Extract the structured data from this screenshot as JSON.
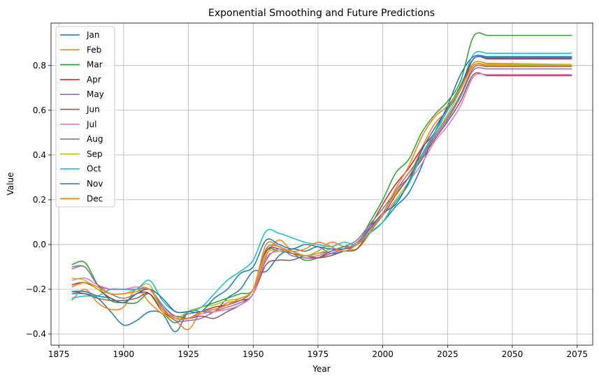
{
  "chart_data": {
    "type": "line",
    "title": "Exponential Smoothing and Future Predictions",
    "xlabel": "Year",
    "ylabel": "Value",
    "xlim": [
      1872,
      2081
    ],
    "ylim": [
      -0.45,
      0.99
    ],
    "xticks": [
      1875,
      1900,
      1925,
      1950,
      1975,
      2000,
      2025,
      2050,
      2075
    ],
    "yticks": [
      -0.4,
      -0.2,
      0.0,
      0.2,
      0.4,
      0.6,
      0.8
    ],
    "ytick_labels": [
      "−0.4",
      "−0.2",
      "0.0",
      "0.2",
      "0.4",
      "0.6",
      "0.8"
    ],
    "grid": true,
    "legend_position": "upper-left",
    "x_step": 5,
    "series": [
      {
        "name": "Jan",
        "color": "#1f77b4",
        "x_start": 1880,
        "x_end": 2073,
        "values": [
          -0.22,
          -0.22,
          -0.24,
          -0.3,
          -0.36,
          -0.34,
          -0.3,
          -0.31,
          -0.39,
          -0.3,
          -0.3,
          -0.3,
          -0.24,
          -0.2,
          -0.12,
          -0.12,
          -0.05,
          -0.02,
          -0.03,
          -0.01,
          -0.04,
          -0.03,
          -0.02,
          0.05,
          0.1,
          0.17,
          0.23,
          0.35,
          0.5,
          0.62,
          0.76,
          0.84,
          0.84
        ],
        "hold": 0.84
      },
      {
        "name": "Feb",
        "color": "#ff7f0e",
        "x_start": 1880,
        "x_end": 2073,
        "values": [
          -0.25,
          -0.2,
          -0.26,
          -0.29,
          -0.28,
          -0.2,
          -0.26,
          -0.31,
          -0.34,
          -0.38,
          -0.3,
          -0.3,
          -0.26,
          -0.25,
          -0.2,
          -0.05,
          0.02,
          -0.03,
          -0.05,
          -0.03,
          0.01,
          -0.01,
          -0.02,
          0.05,
          0.14,
          0.23,
          0.3,
          0.43,
          0.54,
          0.6,
          0.7,
          0.81,
          0.81
        ],
        "hold": 0.805
      },
      {
        "name": "Mar",
        "color": "#2ca02c",
        "x_start": 1880,
        "x_end": 2073,
        "values": [
          -0.09,
          -0.08,
          -0.18,
          -0.25,
          -0.26,
          -0.26,
          -0.22,
          -0.3,
          -0.35,
          -0.3,
          -0.28,
          -0.26,
          -0.24,
          -0.22,
          -0.2,
          -0.03,
          -0.03,
          -0.04,
          -0.07,
          -0.06,
          -0.03,
          -0.01,
          0.0,
          0.1,
          0.2,
          0.32,
          0.38,
          0.5,
          0.58,
          0.64,
          0.73,
          0.93,
          0.935
        ],
        "hold": 0.935
      },
      {
        "name": "Apr",
        "color": "#d62728",
        "x_start": 1880,
        "x_end": 2073,
        "values": [
          -0.18,
          -0.17,
          -0.2,
          -0.24,
          -0.26,
          -0.22,
          -0.22,
          -0.3,
          -0.33,
          -0.33,
          -0.3,
          -0.28,
          -0.27,
          -0.25,
          -0.22,
          -0.03,
          -0.02,
          -0.04,
          -0.05,
          -0.06,
          -0.03,
          -0.02,
          0.01,
          0.08,
          0.18,
          0.27,
          0.34,
          0.43,
          0.5,
          0.6,
          0.69,
          0.83,
          0.83
        ],
        "hold": 0.83
      },
      {
        "name": "May",
        "color": "#9467bd",
        "x_start": 1880,
        "x_end": 2073,
        "values": [
          -0.11,
          -0.1,
          -0.18,
          -0.2,
          -0.2,
          -0.2,
          -0.2,
          -0.28,
          -0.34,
          -0.34,
          -0.33,
          -0.3,
          -0.28,
          -0.26,
          -0.22,
          -0.07,
          -0.02,
          -0.05,
          -0.06,
          -0.06,
          -0.04,
          -0.02,
          0.01,
          0.08,
          0.14,
          0.24,
          0.3,
          0.39,
          0.48,
          0.56,
          0.66,
          0.78,
          0.785
        ],
        "hold": 0.785
      },
      {
        "name": "Jun",
        "color": "#8c564b",
        "x_start": 1880,
        "x_end": 2073,
        "values": [
          -0.21,
          -0.22,
          -0.24,
          -0.25,
          -0.25,
          -0.24,
          -0.22,
          -0.3,
          -0.32,
          -0.33,
          -0.32,
          -0.33,
          -0.3,
          -0.27,
          -0.22,
          -0.09,
          -0.07,
          -0.07,
          -0.05,
          -0.06,
          -0.05,
          -0.03,
          -0.02,
          0.06,
          0.13,
          0.22,
          0.3,
          0.38,
          0.47,
          0.55,
          0.64,
          0.76,
          0.755
        ],
        "hold": 0.755
      },
      {
        "name": "Jul",
        "color": "#e377c2",
        "x_start": 1880,
        "x_end": 2073,
        "values": [
          -0.16,
          -0.15,
          -0.18,
          -0.2,
          -0.2,
          -0.19,
          -0.2,
          -0.27,
          -0.33,
          -0.33,
          -0.31,
          -0.3,
          -0.29,
          -0.27,
          -0.22,
          -0.06,
          -0.03,
          -0.03,
          -0.05,
          -0.05,
          -0.03,
          -0.02,
          0.01,
          0.07,
          0.13,
          0.2,
          0.28,
          0.36,
          0.46,
          0.53,
          0.62,
          0.75,
          0.76
        ],
        "hold": 0.76
      },
      {
        "name": "Aug",
        "color": "#7f7f7f",
        "x_start": 1880,
        "x_end": 2073,
        "values": [
          -0.1,
          -0.1,
          -0.18,
          -0.22,
          -0.24,
          -0.22,
          -0.2,
          -0.27,
          -0.32,
          -0.31,
          -0.3,
          -0.29,
          -0.27,
          -0.25,
          -0.2,
          -0.02,
          -0.01,
          -0.04,
          -0.05,
          -0.04,
          -0.03,
          -0.01,
          0.02,
          0.09,
          0.16,
          0.24,
          0.32,
          0.4,
          0.49,
          0.57,
          0.67,
          0.79,
          0.795
        ],
        "hold": 0.795
      },
      {
        "name": "Sep",
        "color": "#bcbd22",
        "x_start": 1880,
        "x_end": 2073,
        "values": [
          -0.15,
          -0.16,
          -0.2,
          -0.22,
          -0.22,
          -0.2,
          -0.18,
          -0.3,
          -0.33,
          -0.3,
          -0.28,
          -0.27,
          -0.25,
          -0.24,
          -0.2,
          -0.04,
          -0.03,
          -0.03,
          -0.05,
          -0.04,
          -0.02,
          -0.02,
          0.0,
          0.05,
          0.1,
          0.2,
          0.28,
          0.4,
          0.5,
          0.58,
          0.69,
          0.8,
          0.805
        ],
        "hold": 0.805
      },
      {
        "name": "Oct",
        "color": "#17becf",
        "x_start": 1880,
        "x_end": 2073,
        "values": [
          -0.24,
          -0.23,
          -0.23,
          -0.2,
          -0.2,
          -0.2,
          -0.16,
          -0.25,
          -0.3,
          -0.3,
          -0.28,
          -0.22,
          -0.16,
          -0.12,
          -0.07,
          0.06,
          0.05,
          0.03,
          0.01,
          0.0,
          -0.01,
          0.01,
          0.0,
          0.05,
          0.1,
          0.19,
          0.27,
          0.4,
          0.5,
          0.6,
          0.7,
          0.85,
          0.855
        ],
        "hold": 0.855
      },
      {
        "name": "Nov",
        "color": "#1f77b4",
        "x_start": 1880,
        "x_end": 2073,
        "values": [
          -0.21,
          -0.21,
          -0.23,
          -0.24,
          -0.26,
          -0.22,
          -0.2,
          -0.24,
          -0.3,
          -0.3,
          -0.3,
          -0.24,
          -0.2,
          -0.13,
          -0.1,
          0.02,
          0.0,
          -0.02,
          0.0,
          -0.01,
          -0.02,
          -0.02,
          0.0,
          0.07,
          0.14,
          0.18,
          0.28,
          0.42,
          0.52,
          0.61,
          0.71,
          0.83,
          0.835
        ],
        "hold": 0.835
      },
      {
        "name": "Dec",
        "color": "#ff7f0e",
        "x_start": 1880,
        "x_end": 2073,
        "values": [
          -0.19,
          -0.17,
          -0.19,
          -0.22,
          -0.22,
          -0.21,
          -0.2,
          -0.29,
          -0.33,
          -0.33,
          -0.3,
          -0.29,
          -0.27,
          -0.24,
          -0.2,
          0.0,
          -0.01,
          -0.03,
          -0.02,
          0.01,
          -0.01,
          -0.03,
          0.0,
          0.06,
          0.14,
          0.25,
          0.35,
          0.48,
          0.57,
          0.62,
          0.7,
          0.8,
          0.8
        ],
        "hold": 0.8
      }
    ]
  }
}
